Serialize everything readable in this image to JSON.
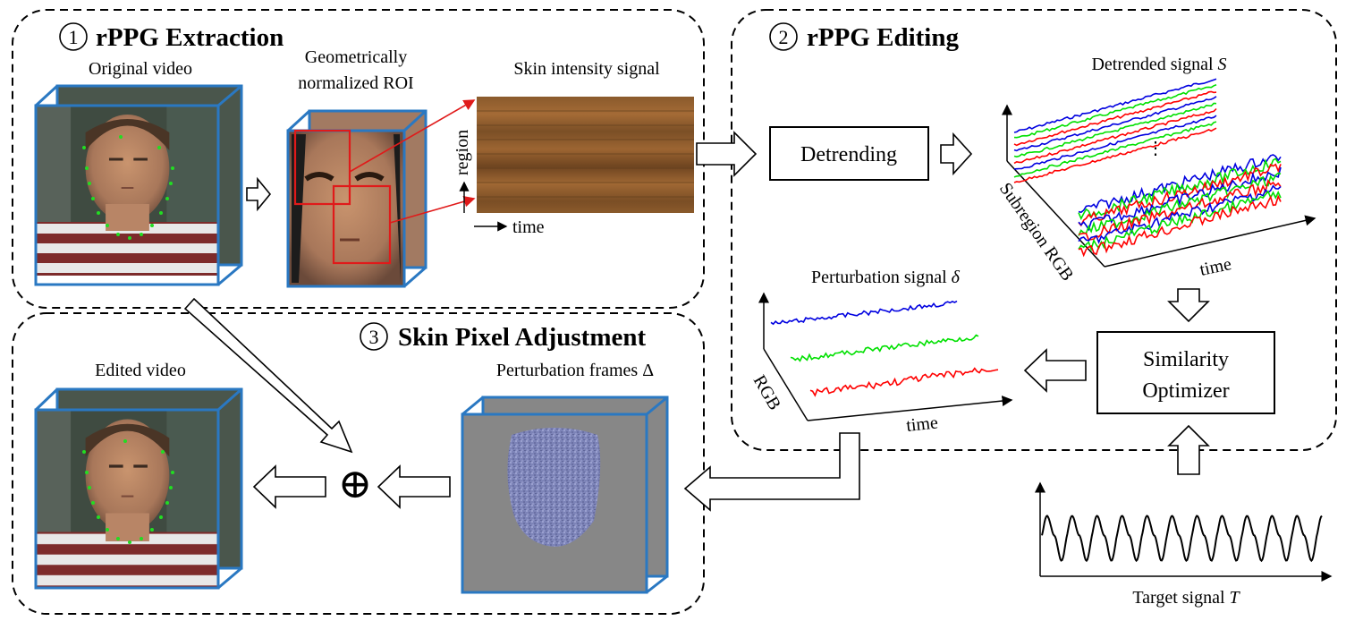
{
  "sections": {
    "extraction": {
      "number": "1",
      "title": "rPPG Extraction"
    },
    "editing": {
      "number": "2",
      "title": "rPPG Editing"
    },
    "adjustment": {
      "number": "3",
      "title": "Skin Pixel Adjustment"
    }
  },
  "labels": {
    "original_video": "Original video",
    "roi_line1": "Geometrically",
    "roi_line2": "normalized ROI",
    "skin_signal": "Skin intensity signal",
    "region_axis": "region",
    "time_axis": "time",
    "detrended": "Detrended signal",
    "detrended_symbol": "S",
    "subregion_axis": "Subregion RGB",
    "perturbation_signal": "Perturbation signal",
    "perturbation_symbol": "δ",
    "rgb_axis": "RGB",
    "edited_video": "Edited video",
    "perturbation_frames": "Perturbation frames Δ",
    "target_signal": "Target signal",
    "target_symbol": "T",
    "oplus": "⊕"
  },
  "boxes": {
    "detrending": "Detrending",
    "similarity_line1": "Similarity",
    "similarity_line2": "Optimizer"
  },
  "colors": {
    "frame_border": "#2a78c2",
    "roi_box": "#e01a1a",
    "red_signal": "#ff0000",
    "green_signal": "#00e000",
    "blue_signal": "#0000e0",
    "perturbation_gray": "#878787",
    "face_noise": "#7d84b8"
  },
  "icons": [
    "face-image-icon",
    "hollow-arrow-icon",
    "oplus-icon"
  ]
}
